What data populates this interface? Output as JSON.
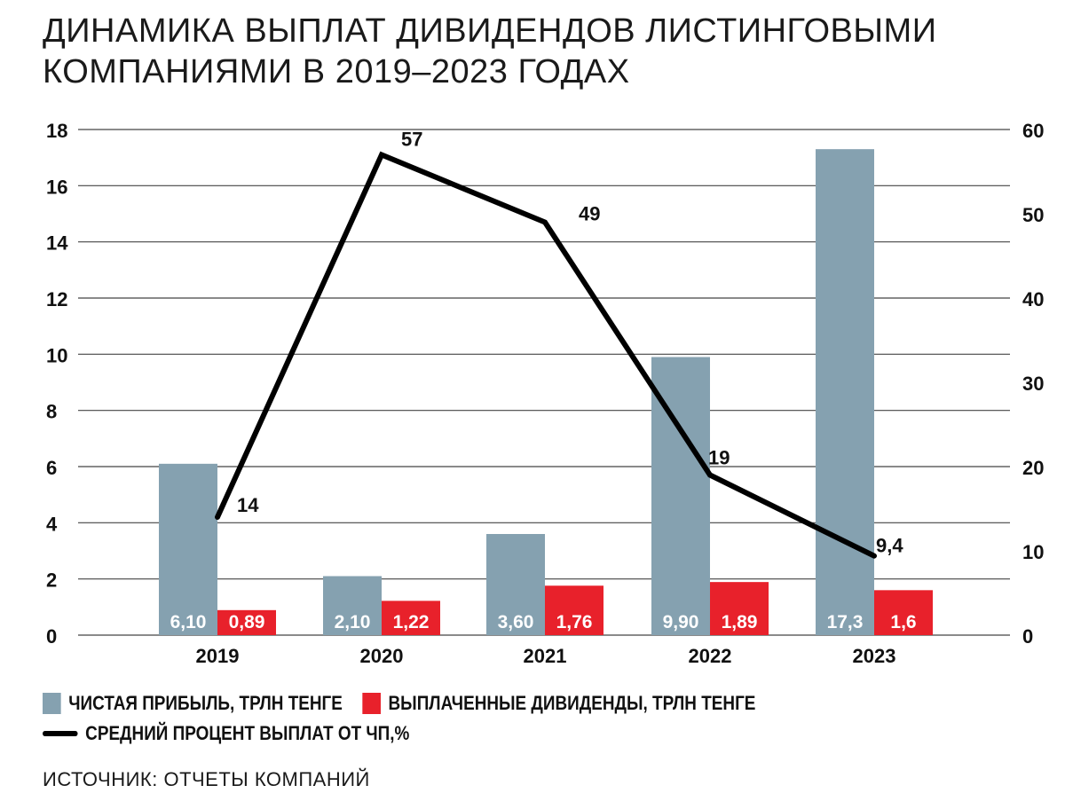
{
  "title_line1": "ДИНАМИКА ВЫПЛАТ ДИВИДЕНДОВ ЛИСТИНГОВЫМИ",
  "title_line2": "КОМПАНИЯМИ В 2019–2023 ГОДАХ",
  "legend": {
    "profit": "ЧИСТАЯ ПРИБЫЛЬ, ТРЛН ТЕНГЕ",
    "dividends": "ВЫПЛАЧЕННЫЕ ДИВИДЕНДЫ, ТРЛН ТЕНГЕ",
    "percent": "СРЕДНИЙ ПРОЦЕНТ ВЫПЛАТ ОТ ЧП,%"
  },
  "source": "ИСТОЧНИК: ОТЧЕТЫ КОМПАНИЙ",
  "colors": {
    "profit": "#85a1b0",
    "dividends": "#e8212b",
    "line": "#000000",
    "grid": "#444444"
  },
  "chart_data": {
    "type": "bar",
    "categories": [
      "2019",
      "2020",
      "2021",
      "2022",
      "2023"
    ],
    "series": [
      {
        "name": "ЧИСТАЯ ПРИБЫЛЬ, ТРЛН ТЕНГЕ",
        "type": "bar",
        "axis": "left",
        "values": [
          6.1,
          2.1,
          3.6,
          9.9,
          17.3
        ],
        "labels": [
          "6,10",
          "2,10",
          "3,60",
          "9,90",
          "17,3"
        ]
      },
      {
        "name": "ВЫПЛАЧЕННЫЕ ДИВИДЕНДЫ, ТРЛН ТЕНГЕ",
        "type": "bar",
        "axis": "left",
        "values": [
          0.89,
          1.22,
          1.76,
          1.89,
          1.6
        ],
        "labels": [
          "0,89",
          "1,22",
          "1,76",
          "1,89",
          "1,6"
        ]
      },
      {
        "name": "СРЕДНИЙ ПРОЦЕНТ ВЫПЛАТ ОТ ЧП,%",
        "type": "line",
        "axis": "right",
        "values": [
          14,
          57,
          49,
          19,
          9.4
        ],
        "labels": [
          "14",
          "57",
          "49",
          "19",
          "9,4"
        ]
      }
    ],
    "y_left": {
      "ylim": [
        0,
        18
      ],
      "ticks": [
        0,
        2,
        4,
        6,
        8,
        10,
        12,
        14,
        16,
        18
      ]
    },
    "y_right": {
      "ylim": [
        0,
        60
      ],
      "ticks": [
        0,
        10,
        20,
        30,
        40,
        50,
        60
      ]
    },
    "grid": true,
    "legend_position": "bottom-left"
  }
}
